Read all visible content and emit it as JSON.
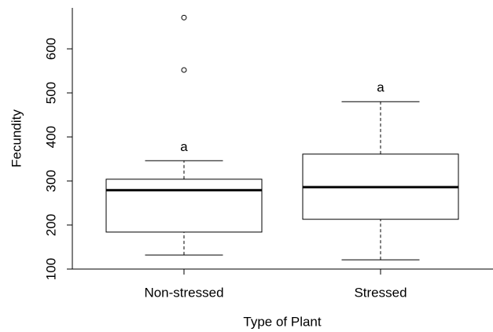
{
  "chart_data": {
    "type": "boxplot",
    "x_label": "Type of Plant",
    "y_label": "Fecundity",
    "categories": [
      "Non-stressed",
      "Stressed"
    ],
    "boxes": [
      {
        "min": 132,
        "q1": 184,
        "median": 279,
        "q3": 304,
        "max": 346,
        "outliers": [
          552,
          671
        ]
      },
      {
        "min": 121,
        "q1": 213,
        "median": 286,
        "q3": 361,
        "max": 480,
        "outliers": []
      }
    ],
    "annotations": [
      "a",
      "a"
    ],
    "ylim": [
      100,
      693
    ],
    "yticks": [
      100,
      200,
      300,
      400,
      500,
      600
    ]
  }
}
